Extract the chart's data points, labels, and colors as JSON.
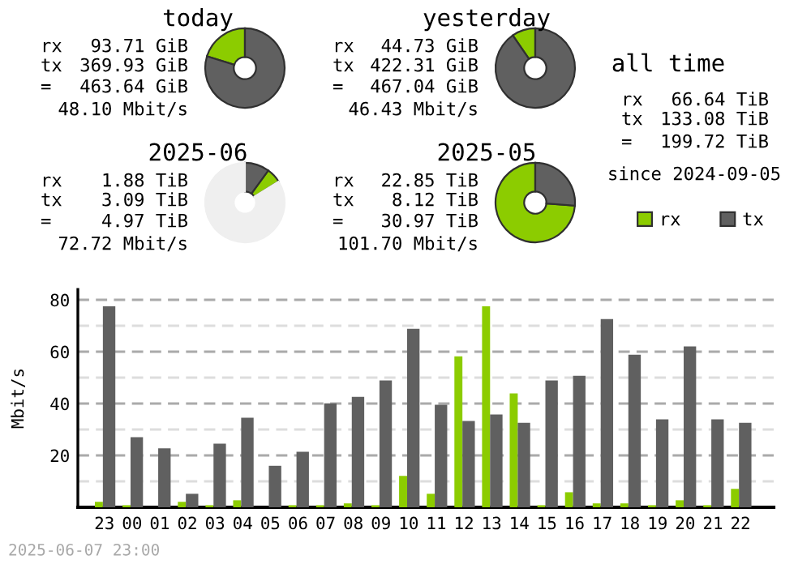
{
  "chart_data": [
    {
      "type": "donut",
      "title": "today",
      "categories": [
        null,
        null
      ],
      "values": [
        20.21,
        79.79
      ],
      "colors": [
        "#8ccc00",
        "#606060"
      ],
      "annotations": [
        "rx",
        "93.71 GiB",
        "tx",
        "369.93 GiB",
        "=",
        "463.64 GiB",
        "48.10 Mbit/s"
      ]
    },
    {
      "type": "donut",
      "title": "yesterday",
      "categories": [
        null,
        null
      ],
      "values": [
        9.58,
        90.42
      ],
      "colors": [
        "#8ccc00",
        "#606060"
      ],
      "annotations": [
        "rx",
        "44.73 GiB",
        "tx",
        "422.31 GiB",
        "=",
        "467.04 GiB",
        "46.43 Mbit/s"
      ]
    },
    {
      "type": "other",
      "title": "all time",
      "annotations": [
        "rx",
        "66.64 TiB",
        "tx",
        "133.08 TiB",
        "=",
        "199.72 TiB",
        "since 2024-09-05"
      ]
    },
    {
      "type": "donut",
      "title": "2025-06",
      "categories": [
        null,
        null,
        null
      ],
      "values": [
        6.1,
        10.0,
        83.9
      ],
      "colors": [
        "#8ccc00",
        "#606060",
        "#efefef"
      ],
      "annotations": [
        "rx",
        "1.88 TiB",
        "tx",
        "3.09 TiB",
        "=",
        "4.97 TiB",
        "72.72 Mbit/s"
      ]
    },
    {
      "type": "donut",
      "title": "2025-05",
      "categories": [
        null,
        null
      ],
      "values": [
        73.78,
        26.22
      ],
      "colors": [
        "#8ccc00",
        "#606060"
      ],
      "annotations": [
        "rx",
        "22.85 TiB",
        "tx",
        "8.12 TiB",
        "=",
        "30.97 TiB",
        "101.70 Mbit/s"
      ]
    },
    {
      "type": "bar",
      "ylabel": "Mbit/s",
      "categories": [
        "23",
        "00",
        "01",
        "02",
        "03",
        "04",
        "05",
        "06",
        "07",
        "08",
        "09",
        "10",
        "11",
        "12",
        "13",
        "14",
        "15",
        "16",
        "17",
        "18",
        "19",
        "20",
        "21",
        "22"
      ],
      "series": [
        {
          "name": "rx",
          "color": "#8ccc00",
          "values": [
            2.1,
            0.8,
            0,
            2.1,
            0.8,
            2.7,
            0,
            0.8,
            0.8,
            1.5,
            0.8,
            12.1,
            5.2,
            58.2,
            77.5,
            43.9,
            0.8,
            5.8,
            1.5,
            1.5,
            0.8,
            2.7,
            0.8,
            7.1
          ]
        },
        {
          "name": "tx",
          "color": "#606060",
          "values": [
            77.5,
            27.0,
            22.7,
            5.2,
            24.5,
            34.5,
            16.0,
            21.4,
            40.1,
            42.6,
            48.9,
            68.8,
            39.5,
            33.3,
            35.8,
            32.6,
            48.9,
            50.7,
            72.6,
            58.8,
            33.9,
            62.0,
            33.9,
            32.6
          ]
        }
      ],
      "ylim": [
        0,
        84
      ],
      "yticks": [
        {
          "value": 10,
          "label": null
        },
        20,
        {
          "value": 30,
          "label": null
        },
        40,
        {
          "value": 50,
          "label": null
        },
        60,
        {
          "value": 70,
          "label": null
        },
        80
      ],
      "grid": "y",
      "legend": "top right",
      "annotations": [
        "2025-06-07 23:00"
      ]
    }
  ]
}
